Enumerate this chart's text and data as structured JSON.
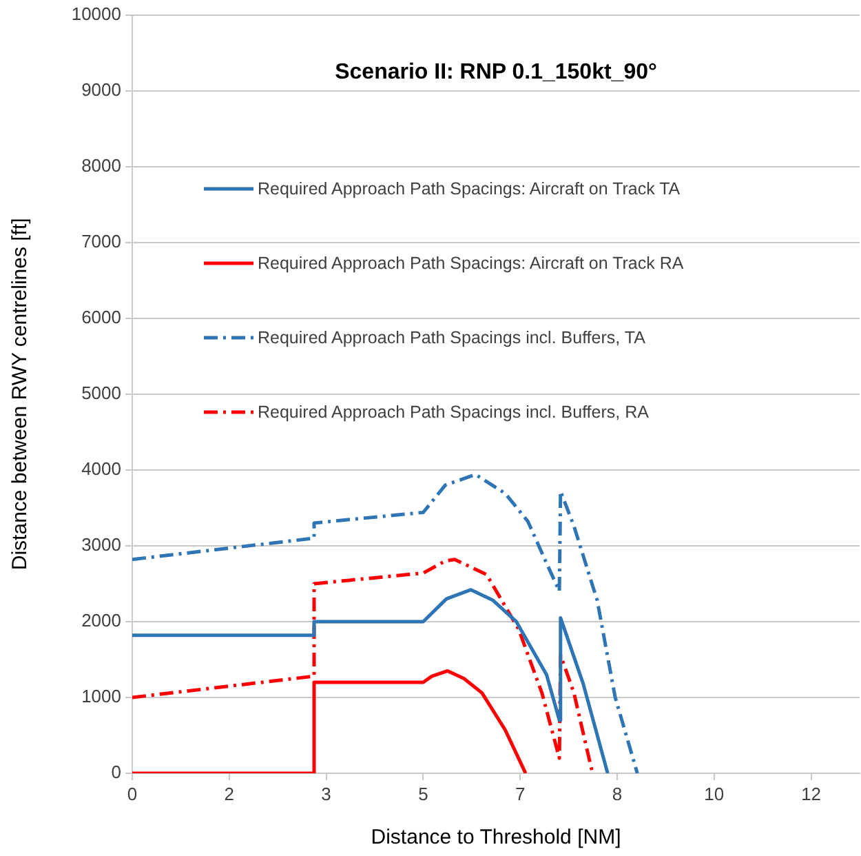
{
  "chart_data": {
    "type": "line",
    "title": "Scenario II: RNP 0.1_150kt_90°",
    "xlabel": "Distance to Threshold [NM]",
    "ylabel": "Distance between RWY centrelines [ft]",
    "xlim": [
      0,
      12.5
    ],
    "xticks": [
      0,
      {
        "value": 1.667,
        "label": "2"
      },
      {
        "value": 3.333,
        "label": "3"
      },
      5,
      {
        "value": 6.667,
        "label": "7"
      },
      {
        "value": 8.333,
        "label": "8"
      },
      10,
      {
        "value": 11.667,
        "label": "12"
      }
    ],
    "ylim": [
      0,
      10000
    ],
    "yticks": [
      0,
      1000,
      2000,
      3000,
      4000,
      5000,
      6000,
      7000,
      8000,
      9000,
      10000
    ],
    "grid": "y",
    "legend": "top",
    "marker": "none",
    "series": [
      {
        "name": "Required Approach Path Spacings: Aircraft on Track TA",
        "color": "#2e75b6",
        "line_style": "solid",
        "x": [
          0,
          3.125,
          3.125,
          5,
          5.4,
          5.82,
          6.2,
          6.6,
          7.12,
          7.34,
          7.36,
          7.75,
          8.17
        ],
        "values": [
          1820,
          1820,
          2000,
          2000,
          2300,
          2420,
          2280,
          2000,
          1300,
          700,
          2050,
          1180,
          0
        ]
      },
      {
        "name": "Required Approach Path Spacings: Aircraft on Track RA",
        "color": "#ff0000",
        "line_style": "solid",
        "x": [
          0,
          3.125,
          3.125,
          5,
          5.15,
          5.42,
          5.7,
          6.01,
          6.41,
          6.76
        ],
        "values": [
          0,
          0,
          1200,
          1200,
          1280,
          1350,
          1250,
          1060,
          570,
          0
        ]
      },
      {
        "name": "Required Approach Path Spacings incl. Buffers, TA",
        "color": "#2e75b6",
        "line_style": "dashed",
        "x": [
          0,
          3.125,
          3.125,
          5,
          5.38,
          5.9,
          6.41,
          6.8,
          7.12,
          7.34,
          7.36,
          7.59,
          7.99,
          8.3,
          8.68
        ],
        "values": [
          2820,
          3100,
          3300,
          3440,
          3800,
          3940,
          3690,
          3320,
          2770,
          2400,
          3720,
          3260,
          2280,
          1000,
          0
        ]
      },
      {
        "name": "Required Approach Path Spacings incl. Buffers, RA",
        "color": "#ff0000",
        "line_style": "dashed",
        "x": [
          0,
          3.125,
          3.125,
          5,
          5.38,
          5.54,
          6.09,
          6.64,
          7.04,
          7.34,
          7.36,
          7.59,
          7.91
        ],
        "values": [
          1000,
          1280,
          2500,
          2640,
          2800,
          2820,
          2620,
          1900,
          1060,
          200,
          1560,
          1060,
          0
        ]
      }
    ]
  }
}
